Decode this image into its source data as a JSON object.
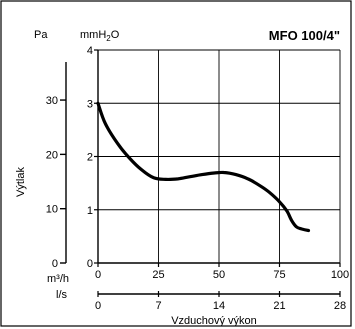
{
  "chart_data": {
    "type": "line",
    "title": "MFO 100/4\"",
    "ylabel": "Výtlak",
    "xlabel": "Vzduchový výkon",
    "y_unit_left_outer": "Pa",
    "y_unit_left_inner_base": "mmH",
    "y_unit_left_inner_sub": "2",
    "y_unit_left_inner_tail": "O",
    "x_unit_primary": "m³/h",
    "x_unit_secondary": "l/s",
    "xlim": [
      0,
      100
    ],
    "ylim_mmH2O": [
      0,
      4
    ],
    "x_ticks": [
      "0",
      "25",
      "50",
      "75",
      "100"
    ],
    "x_tick_values": [
      0,
      25,
      50,
      75,
      100
    ],
    "x2_ticks": [
      "0",
      "7",
      "14",
      "21",
      "28"
    ],
    "x2_tick_values_m3h": [
      0,
      25,
      50,
      75,
      100
    ],
    "y_ticks_mmH2O": [
      "0",
      "1",
      "2",
      "3",
      "4"
    ],
    "y_tick_values_mmH2O": [
      0,
      1,
      2,
      3,
      4
    ],
    "y_ticks_Pa": [
      "0",
      "10",
      "20",
      "30"
    ],
    "y_tick_values_Pa_as_mmH2O": [
      0,
      1.02,
      2.04,
      3.06
    ],
    "grid": true,
    "series": [
      {
        "x": [
          0,
          3,
          8,
          13,
          18,
          23,
          28,
          33,
          38,
          43,
          48,
          52,
          57,
          62,
          67,
          71,
          75,
          78,
          80,
          82,
          84,
          87
        ],
        "y": [
          3.0,
          2.62,
          2.25,
          1.97,
          1.75,
          1.6,
          1.57,
          1.58,
          1.62,
          1.66,
          1.69,
          1.7,
          1.66,
          1.58,
          1.45,
          1.32,
          1.15,
          0.98,
          0.8,
          0.68,
          0.64,
          0.61
        ]
      }
    ]
  }
}
